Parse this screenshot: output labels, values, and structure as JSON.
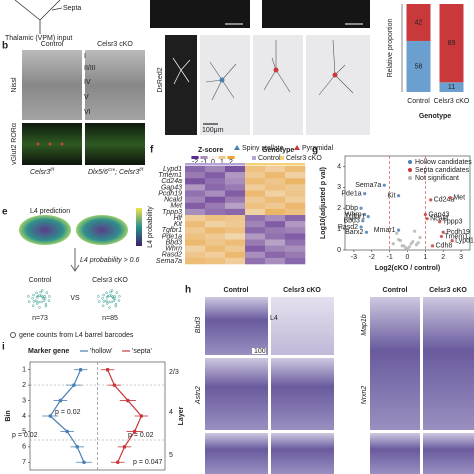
{
  "panel_a": {
    "septa": "Septa",
    "input": "Thalamic (VPM) input"
  },
  "panel_b": {
    "letter": "b",
    "control": "Control",
    "cko": "Celsr3 cKO",
    "nissl": "Nissl",
    "layers": [
      "I",
      "II/III",
      "IV",
      "V",
      "VI"
    ],
    "stain": "vGlut2 RORα",
    "genotype_left": [
      "Celsr3",
      "f/f"
    ],
    "genotype_right": [
      "Dlx5/6",
      "Cre",
      "; Celsr3",
      "f/f"
    ]
  },
  "panel_c": {
    "stain": "DsRed2",
    "scale": "100μm",
    "legend": [
      "Spiny stellate",
      "Pyramidal"
    ]
  },
  "panel_e": {
    "letter": "e",
    "title": "L4 prediction",
    "colorbar_label": "L4 probability",
    "threshold": "L4 probability > 0.6",
    "control": "Control",
    "cko": "Celsr3 cKO",
    "vs": "VS",
    "n_control": "n=73",
    "n_cko": "n=85",
    "note": "gene counts from L4 barrel barcodes"
  },
  "panel_h": {
    "letter": "h",
    "columns": [
      "Control",
      "Celsr3 cKO",
      "Control",
      "Celsr3 cKO"
    ],
    "genes": [
      "Bbd3",
      "Astn2",
      "Map1b",
      "Nrxn2"
    ],
    "layer": "L4",
    "scale": "100"
  },
  "chart_data": [
    {
      "type": "bar",
      "stacked": true,
      "ylabel": "Relative proportion",
      "xlabel": "Genotype",
      "categories": [
        "Control",
        "Celsr3 cKO"
      ],
      "ylim": [
        0,
        100
      ],
      "series": [
        {
          "name": "Spiny stellate",
          "color": "#6a9fcf",
          "values": [
            58,
            11
          ]
        },
        {
          "name": "Pyramidal",
          "color": "#c9393c",
          "values": [
            42,
            89
          ]
        }
      ]
    },
    {
      "type": "heatmap",
      "letter": "f",
      "zlabel": "Z-score",
      "zlim": [
        -2,
        2
      ],
      "zticks": [
        -2,
        -1,
        0,
        1,
        2
      ],
      "colors": [
        "#5b2c8f",
        "#f5f0ea",
        "#e9a23b"
      ],
      "group_label": "Genotype",
      "groups": [
        {
          "name": "Control",
          "color": "#b6a4d6"
        },
        {
          "name": "Celsr3 cKO",
          "color": "#f3d27a"
        }
      ],
      "group_of_column": [
        0,
        0,
        0,
        1,
        1,
        1
      ],
      "row_labels": [
        "Lypd1",
        "Tmem1",
        "Cd24a",
        "Gap43",
        "Pcdh19",
        "Ncald",
        "Met",
        "Tppp3",
        "Hlf",
        "Kit",
        "Tgfbr1",
        "Pde1a",
        "Bbd3",
        "Whrn",
        "Rasd2",
        "Sema7a"
      ],
      "row_label_colors": [
        "#c9393c",
        "#c9393c",
        "#c9393c",
        "#c9393c",
        "#c9393c",
        "#c9393c",
        "#c9393c",
        "#c9393c",
        "#4a7fb5",
        "#4a7fb5",
        "#4a7fb5",
        "#4a7fb5",
        "#4a7fb5",
        "#4a7fb5",
        "#4a7fb5",
        "#4a7fb5"
      ],
      "values": [
        [
          -1.4,
          -1.1,
          -1.6,
          1.2,
          0.9,
          1.3
        ],
        [
          -1.2,
          -1.5,
          -0.9,
          1.0,
          1.4,
          0.8
        ],
        [
          -1.6,
          -1.3,
          -1.0,
          1.3,
          1.1,
          1.5
        ],
        [
          -0.9,
          -1.4,
          -1.2,
          0.9,
          1.2,
          1.0
        ],
        [
          -1.3,
          -1.0,
          -1.5,
          1.4,
          0.8,
          1.1
        ],
        [
          -1.1,
          -1.6,
          -1.2,
          1.0,
          1.3,
          0.9
        ],
        [
          -1.5,
          -1.2,
          -0.8,
          1.2,
          1.0,
          1.4
        ],
        [
          -1.0,
          -1.3,
          -1.4,
          0.8,
          1.5,
          1.2
        ],
        [
          0.9,
          1.2,
          1.1,
          -1.3,
          -1.0,
          -1.4
        ],
        [
          1.3,
          0.8,
          1.0,
          -1.1,
          -1.5,
          -0.9
        ],
        [
          1.0,
          1.4,
          1.2,
          -1.4,
          -1.2,
          -1.1
        ],
        [
          1.2,
          1.0,
          0.7,
          -0.9,
          -1.3,
          -1.5
        ],
        [
          1.4,
          1.1,
          1.3,
          -1.2,
          -0.8,
          -1.3
        ],
        [
          0.8,
          1.3,
          1.0,
          -1.5,
          -1.1,
          -1.0
        ],
        [
          1.1,
          0.9,
          1.4,
          -1.0,
          -1.4,
          -1.2
        ],
        [
          1.3,
          1.2,
          0.9,
          -1.3,
          -1.0,
          -1.4
        ]
      ]
    },
    {
      "type": "scatter",
      "letter": "g",
      "xlabel": "Log2(cKO / control)",
      "ylabel": "Log10(adjusted p val)",
      "xlim": [
        -3.5,
        3.5
      ],
      "xticks": [
        -3,
        -2,
        -1,
        0,
        1,
        2,
        3
      ],
      "ylim": [
        0,
        4.5
      ],
      "yticks": [
        0,
        1,
        2,
        3,
        4
      ],
      "series": [
        {
          "name": "Hollow candidates",
          "color": "#4a7fb5",
          "x": [
            -1.3,
            -2.4,
            -2.6,
            -0.5,
            -2.4,
            -2.2,
            -2.5,
            -2.6,
            -0.5,
            -2.3
          ],
          "y": [
            3.1,
            2.7,
            2.0,
            2.6,
            1.7,
            1.6,
            1.4,
            1.1,
            0.95,
            0.85
          ],
          "labels": [
            "Sema7a",
            "Pde1a",
            "Dbp",
            "Kit",
            "Whrn",
            "Tgfbr1",
            "Bbd3",
            "Rasd2",
            "Mmar1",
            "Barx2"
          ]
        },
        {
          "name": "Septa candidates",
          "color": "#c9393c",
          "x": [
            1.3,
            2.4,
            1.0,
            1.1,
            1.8,
            2.0,
            1.9,
            2.5,
            1.4
          ],
          "y": [
            2.4,
            2.5,
            1.7,
            1.5,
            1.35,
            0.85,
            0.65,
            0.45,
            0.2
          ],
          "labels": [
            "Cd24a",
            "Met",
            "Gap43",
            "Ncald",
            "Tppp3",
            "Pcdh19",
            "Tmem1",
            "Lypd1",
            "Cdh8"
          ]
        },
        {
          "name": "Not significant",
          "color": "#b5b5b5",
          "x": [
            -0.8,
            -0.5,
            -0.3,
            -0.1,
            0.1,
            0.3,
            0.5,
            0.7,
            -0.6,
            0.4,
            0.2,
            -0.2,
            0.0,
            0.6,
            -0.4
          ],
          "y": [
            0.3,
            0.5,
            0.2,
            0.1,
            0.15,
            0.4,
            0.25,
            0.6,
            0.8,
            0.9,
            0.3,
            0.2,
            0.05,
            0.35,
            0.45
          ]
        }
      ]
    },
    {
      "type": "line",
      "letter": "i",
      "legend_title": "Marker gene",
      "ylabel": "Bin",
      "ylim": [
        0.5,
        7.5
      ],
      "yticks": [
        1,
        2,
        3,
        4,
        5,
        6,
        7
      ],
      "xlim": [
        -1,
        1
      ],
      "series": [
        {
          "name": "'hollow'",
          "color": "#4a7fb5",
          "values": [
            -0.25,
            -0.35,
            -0.55,
            -0.7,
            -0.45,
            -0.3,
            -0.2
          ],
          "errors": [
            0.1,
            0.12,
            0.1,
            0.12,
            0.1,
            0.1,
            0.12
          ]
        },
        {
          "name": "'septa'",
          "color": "#c9393c",
          "values": [
            0.15,
            0.25,
            0.45,
            0.65,
            0.55,
            0.4,
            0.3
          ],
          "errors": [
            0.1,
            0.1,
            0.12,
            0.1,
            0.12,
            0.1,
            0.1
          ]
        }
      ],
      "layer_label": "Layer",
      "layers": [
        "2/3",
        "4",
        "5"
      ],
      "annotations": [
        "p = 0.02",
        "p = 0.02",
        "p = 0.02",
        "p = 0.047"
      ]
    }
  ]
}
